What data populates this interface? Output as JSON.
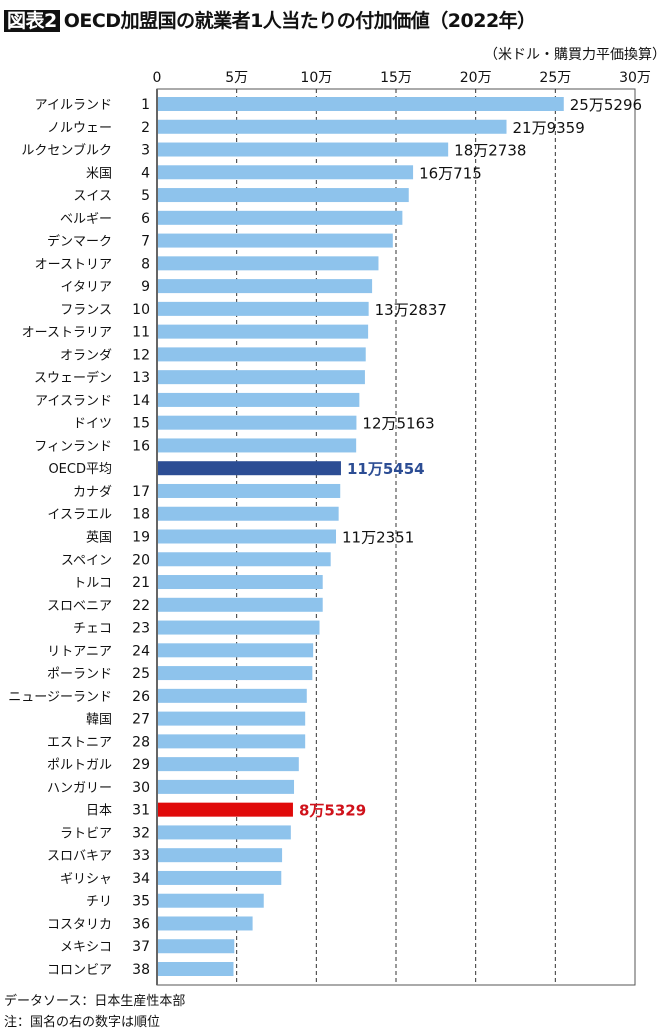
{
  "chart_data": {
    "type": "bar",
    "orientation": "horizontal",
    "title_tag": "図表2",
    "title": "OECD加盟国の就業者1人当たりの付加価値（2022年）",
    "unit_label": "（米ドル・購買力平価換算）",
    "xlim": [
      0,
      30
    ],
    "xticks": [
      0,
      5,
      10,
      15,
      20,
      25,
      30
    ],
    "xtick_labels": [
      "0",
      "5万",
      "10万",
      "15万",
      "20万",
      "25万",
      "30万"
    ],
    "grid": "vertical dashed",
    "colors": {
      "default": "#8ec3ec",
      "oecd": "#2c4d94",
      "japan": "#e00a0a",
      "label_oecd": "#2c4d94",
      "label_japan": "#d0121b"
    },
    "categories": [
      "アイルランド",
      "ノルウェー",
      "ルクセンブルク",
      "米国",
      "スイス",
      "ベルギー",
      "デンマーク",
      "オーストリア",
      "イタリア",
      "フランス",
      "オーストラリア",
      "オランダ",
      "スウェーデン",
      "アイスランド",
      "ドイツ",
      "フィンランド",
      "OECD平均",
      "カナダ",
      "イスラエル",
      "英国",
      "スペイン",
      "トルコ",
      "スロベニア",
      "チェコ",
      "リトアニア",
      "ポーランド",
      "ニュージーランド",
      "韓国",
      "エストニア",
      "ポルトガル",
      "ハンガリー",
      "日本",
      "ラトビア",
      "スロバキア",
      "ギリシャ",
      "チリ",
      "コスタリカ",
      "メキシコ",
      "コロンビア"
    ],
    "ranks": [
      "1",
      "2",
      "3",
      "4",
      "5",
      "6",
      "7",
      "8",
      "9",
      "10",
      "11",
      "12",
      "13",
      "14",
      "15",
      "16",
      "",
      "17",
      "18",
      "19",
      "20",
      "21",
      "22",
      "23",
      "24",
      "25",
      "26",
      "27",
      "28",
      "29",
      "30",
      "31",
      "32",
      "33",
      "34",
      "35",
      "36",
      "37",
      "38"
    ],
    "values": [
      25.5296,
      21.9359,
      18.2738,
      16.0715,
      15.8,
      15.4,
      14.8,
      13.9,
      13.5,
      13.2837,
      13.25,
      13.1,
      13.05,
      12.7,
      12.5163,
      12.5,
      11.5454,
      11.5,
      11.4,
      11.2351,
      10.9,
      10.4,
      10.4,
      10.2,
      9.8,
      9.75,
      9.4,
      9.3,
      9.3,
      8.9,
      8.6,
      8.5329,
      8.4,
      7.85,
      7.8,
      6.7,
      6.0,
      4.85,
      4.8
    ],
    "data_labels": [
      "25万5296",
      "21万9359",
      "18万2738",
      "16万715",
      "",
      "",
      "",
      "",
      "",
      "13万2837",
      "",
      "",
      "",
      "",
      "12万5163",
      "",
      "11万5454",
      "",
      "",
      "11万2351",
      "",
      "",
      "",
      "",
      "",
      "",
      "",
      "",
      "",
      "",
      "",
      "8万5329",
      "",
      "",
      "",
      "",
      "",
      "",
      ""
    ],
    "highlight": {
      "OECD平均": "oecd",
      "日本": "japan"
    }
  },
  "notes": {
    "source": "データソース：日本生産性本部",
    "note": "注：国名の右の数字は順位"
  }
}
